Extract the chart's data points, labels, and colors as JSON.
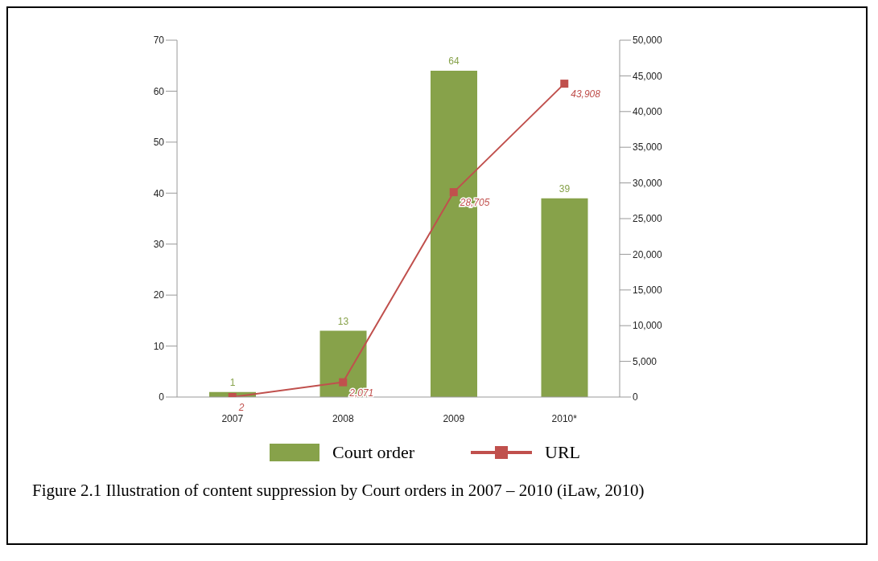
{
  "chart_data": {
    "type": "bar",
    "categories": [
      "2007",
      "2008",
      "2009",
      "2010*"
    ],
    "series": [
      {
        "name": "Court order",
        "type": "bar",
        "color": "#87a24a",
        "values": [
          1,
          13,
          64,
          39
        ],
        "value_labels": [
          "1",
          "13",
          "64",
          "39"
        ]
      },
      {
        "name": "URL",
        "type": "line",
        "axis": "y2",
        "color": "#c0504d",
        "values": [
          2,
          2071,
          28705,
          43908
        ],
        "value_labels": [
          "2",
          "2,071",
          "28,705",
          "43,908"
        ],
        "marker": "square"
      }
    ],
    "ylim": [
      0,
      70
    ],
    "yticks": [
      0,
      10,
      20,
      30,
      40,
      50,
      60,
      70
    ],
    "y2lim": [
      0,
      50000
    ],
    "y2ticks": [
      0,
      {
        "value": 5000,
        "label": "5,000"
      },
      {
        "value": 10000,
        "label": "10,000"
      },
      {
        "value": 15000,
        "label": "15,000"
      },
      {
        "value": 20000,
        "label": "20,000"
      },
      {
        "value": 25000,
        "label": "25,000"
      },
      {
        "value": 30000,
        "label": "30,000"
      },
      {
        "value": 35000,
        "label": "35,000"
      },
      {
        "value": 40000,
        "label": "40,000"
      },
      {
        "value": 45000,
        "label": "45,000"
      },
      {
        "value": 50000,
        "label": "50,000"
      }
    ],
    "grid": false,
    "legend": "bottom",
    "annotations": [
      "Figure 2.1 Illustration of content suppression by Court orders in 2007 – 2010 (iLaw, 2010)"
    ]
  }
}
